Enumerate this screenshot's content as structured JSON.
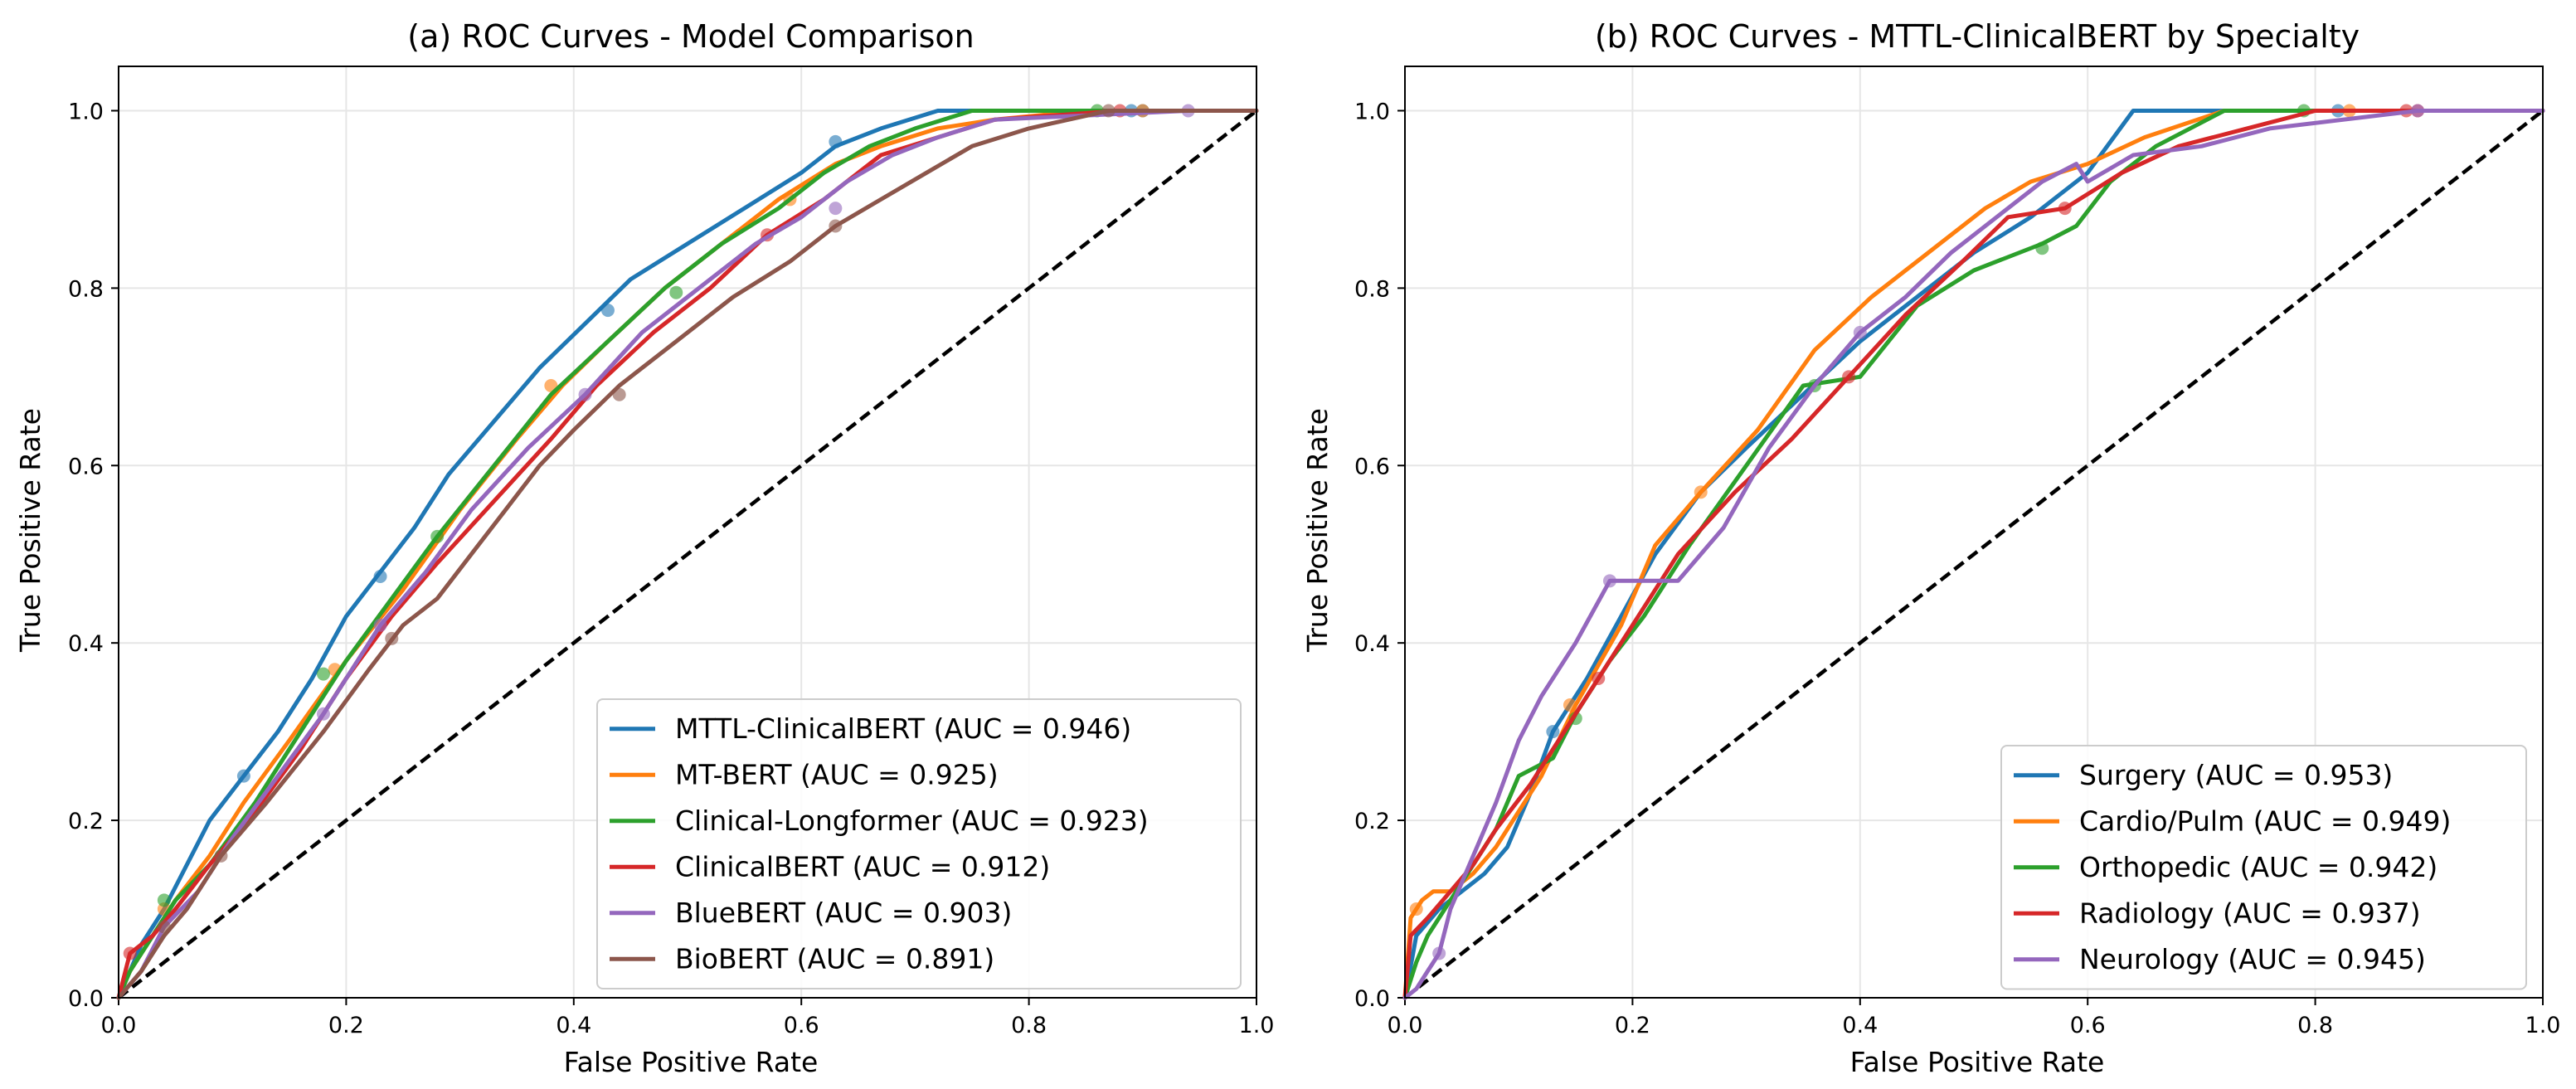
{
  "colors": {
    "blue": "#1f77b4",
    "orange": "#ff7f0e",
    "green": "#2ca02c",
    "red": "#d62728",
    "purple": "#9467bd",
    "brown": "#8c564b",
    "grid": "#e6e6e6",
    "diagonal": "#000000"
  },
  "chart_data": [
    {
      "type": "line",
      "title": "(a) ROC Curves - Model Comparison",
      "xlabel": "False Positive Rate",
      "ylabel": "True Positive Rate",
      "xlim": [
        0.0,
        1.0
      ],
      "ylim": [
        0.0,
        1.05
      ],
      "xticks": [
        "0.0",
        "0.2",
        "0.4",
        "0.6",
        "0.8",
        "1.0"
      ],
      "yticks": [
        "0.0",
        "0.2",
        "0.4",
        "0.6",
        "0.8",
        "1.0"
      ],
      "grid": true,
      "legend_position": "lower-right",
      "diagonal": true,
      "series": [
        {
          "name": "MTTL-ClinicalBERT (AUC = 0.946)",
          "color": "#1f77b4",
          "x": [
            0,
            0.01,
            0.02,
            0.04,
            0.06,
            0.08,
            0.11,
            0.14,
            0.17,
            0.2,
            0.23,
            0.26,
            0.29,
            0.33,
            0.37,
            0.41,
            0.45,
            0.5,
            0.55,
            0.6,
            0.63,
            0.67,
            0.72,
            0.75,
            0.8,
            0.9,
            1.0
          ],
          "y": [
            0,
            0.03,
            0.06,
            0.1,
            0.15,
            0.2,
            0.25,
            0.3,
            0.36,
            0.43,
            0.48,
            0.53,
            0.59,
            0.65,
            0.71,
            0.76,
            0.81,
            0.85,
            0.89,
            0.93,
            0.96,
            0.98,
            1.0,
            1.0,
            1.0,
            1.0,
            1.0
          ],
          "markers": [
            [
              0.11,
              0.25
            ],
            [
              0.23,
              0.475
            ],
            [
              0.43,
              0.775
            ],
            [
              0.63,
              0.965
            ],
            [
              0.89,
              1.0
            ],
            [
              0.9,
              1.0
            ]
          ]
        },
        {
          "name": "MT-BERT (AUC = 0.925)",
          "color": "#ff7f0e",
          "x": [
            0,
            0.01,
            0.03,
            0.05,
            0.08,
            0.11,
            0.15,
            0.2,
            0.25,
            0.3,
            0.35,
            0.39,
            0.43,
            0.48,
            0.53,
            0.58,
            0.63,
            0.67,
            0.72,
            0.77,
            0.85,
            0.9,
            1.0
          ],
          "y": [
            0,
            0.03,
            0.07,
            0.11,
            0.16,
            0.22,
            0.29,
            0.38,
            0.46,
            0.55,
            0.63,
            0.69,
            0.74,
            0.8,
            0.85,
            0.9,
            0.94,
            0.96,
            0.98,
            0.99,
            1.0,
            1.0,
            1.0
          ],
          "markers": [
            [
              0.04,
              0.1
            ],
            [
              0.19,
              0.37
            ],
            [
              0.38,
              0.69
            ],
            [
              0.59,
              0.9
            ],
            [
              0.9,
              1.0
            ]
          ]
        },
        {
          "name": "Clinical-Longformer (AUC = 0.923)",
          "color": "#2ca02c",
          "x": [
            0,
            0.01,
            0.03,
            0.05,
            0.08,
            0.12,
            0.16,
            0.2,
            0.24,
            0.28,
            0.33,
            0.38,
            0.43,
            0.48,
            0.53,
            0.58,
            0.62,
            0.66,
            0.7,
            0.75,
            0.86,
            1.0
          ],
          "y": [
            0,
            0.03,
            0.07,
            0.11,
            0.15,
            0.22,
            0.3,
            0.38,
            0.45,
            0.52,
            0.6,
            0.68,
            0.74,
            0.8,
            0.85,
            0.89,
            0.93,
            0.96,
            0.98,
            1.0,
            1.0,
            1.0
          ],
          "markers": [
            [
              0.04,
              0.11
            ],
            [
              0.18,
              0.365
            ],
            [
              0.28,
              0.52
            ],
            [
              0.49,
              0.795
            ],
            [
              0.86,
              1.0
            ]
          ]
        },
        {
          "name": "ClinicalBERT (AUC = 0.912)",
          "color": "#d62728",
          "x": [
            0,
            0.01,
            0.03,
            0.05,
            0.08,
            0.12,
            0.16,
            0.2,
            0.24,
            0.28,
            0.33,
            0.38,
            0.42,
            0.47,
            0.52,
            0.57,
            0.62,
            0.67,
            0.72,
            0.77,
            0.88,
            1.0
          ],
          "y": [
            0,
            0.05,
            0.07,
            0.1,
            0.15,
            0.21,
            0.28,
            0.36,
            0.43,
            0.49,
            0.56,
            0.63,
            0.69,
            0.75,
            0.8,
            0.86,
            0.9,
            0.95,
            0.97,
            0.99,
            1.0,
            1.0
          ],
          "markers": [
            [
              0.01,
              0.05
            ],
            [
              0.57,
              0.86
            ],
            [
              0.88,
              1.0
            ]
          ]
        },
        {
          "name": "BlueBERT (AUC = 0.903)",
          "color": "#9467bd",
          "x": [
            0,
            0.02,
            0.04,
            0.07,
            0.1,
            0.14,
            0.18,
            0.23,
            0.27,
            0.31,
            0.36,
            0.41,
            0.46,
            0.51,
            0.56,
            0.6,
            0.64,
            0.68,
            0.72,
            0.77,
            0.94,
            1.0
          ],
          "y": [
            0,
            0.03,
            0.08,
            0.12,
            0.18,
            0.25,
            0.32,
            0.42,
            0.48,
            0.55,
            0.62,
            0.68,
            0.75,
            0.8,
            0.85,
            0.88,
            0.92,
            0.95,
            0.97,
            0.99,
            1.0,
            1.0
          ],
          "markers": [
            [
              0.18,
              0.32
            ],
            [
              0.23,
              0.42
            ],
            [
              0.41,
              0.68
            ],
            [
              0.63,
              0.89
            ],
            [
              0.94,
              1.0
            ]
          ]
        },
        {
          "name": "BioBERT (AUC = 0.891)",
          "color": "#8c564b",
          "x": [
            0,
            0.02,
            0.04,
            0.06,
            0.09,
            0.13,
            0.18,
            0.22,
            0.25,
            0.28,
            0.31,
            0.34,
            0.37,
            0.4,
            0.44,
            0.49,
            0.54,
            0.59,
            0.63,
            0.67,
            0.71,
            0.75,
            0.8,
            0.87,
            1.0
          ],
          "y": [
            0,
            0.03,
            0.07,
            0.1,
            0.16,
            0.22,
            0.3,
            0.37,
            0.42,
            0.45,
            0.5,
            0.55,
            0.6,
            0.64,
            0.69,
            0.74,
            0.79,
            0.83,
            0.87,
            0.9,
            0.93,
            0.96,
            0.98,
            1.0,
            1.0
          ],
          "markers": [
            [
              0.04,
              0.08
            ],
            [
              0.09,
              0.16
            ],
            [
              0.24,
              0.405
            ],
            [
              0.44,
              0.68
            ],
            [
              0.63,
              0.87
            ],
            [
              0.87,
              1.0
            ]
          ]
        }
      ]
    },
    {
      "type": "line",
      "title": "(b) ROC Curves - MTTL-ClinicalBERT by Specialty",
      "xlabel": "False Positive Rate",
      "ylabel": "True Positive Rate",
      "xlim": [
        0.0,
        1.0
      ],
      "ylim": [
        0.0,
        1.05
      ],
      "xticks": [
        "0.0",
        "0.2",
        "0.4",
        "0.6",
        "0.8",
        "1.0"
      ],
      "yticks": [
        "0.0",
        "0.2",
        "0.4",
        "0.6",
        "0.8",
        "1.0"
      ],
      "grid": true,
      "legend_position": "lower-right",
      "diagonal": true,
      "series": [
        {
          "name": "Surgery (AUC = 0.953)",
          "color": "#1f77b4",
          "x": [
            0,
            0.01,
            0.03,
            0.05,
            0.07,
            0.09,
            0.11,
            0.13,
            0.16,
            0.19,
            0.22,
            0.26,
            0.3,
            0.35,
            0.4,
            0.45,
            0.5,
            0.55,
            0.6,
            0.64,
            0.72,
            0.82,
            1.0
          ],
          "y": [
            0,
            0.07,
            0.1,
            0.12,
            0.14,
            0.17,
            0.23,
            0.3,
            0.36,
            0.43,
            0.5,
            0.57,
            0.62,
            0.68,
            0.74,
            0.79,
            0.84,
            0.88,
            0.93,
            1.0,
            1.0,
            1.0,
            1.0
          ],
          "markers": [
            [
              0.13,
              0.3
            ],
            [
              0.82,
              1.0
            ]
          ]
        },
        {
          "name": "Cardio/Pulm (AUC = 0.949)",
          "color": "#ff7f0e",
          "x": [
            0,
            0.005,
            0.015,
            0.025,
            0.04,
            0.06,
            0.08,
            0.1,
            0.12,
            0.15,
            0.19,
            0.22,
            0.26,
            0.31,
            0.36,
            0.41,
            0.46,
            0.51,
            0.55,
            0.6,
            0.65,
            0.72,
            0.8,
            0.83,
            1.0
          ],
          "y": [
            0,
            0.09,
            0.11,
            0.12,
            0.12,
            0.14,
            0.17,
            0.21,
            0.25,
            0.33,
            0.42,
            0.51,
            0.57,
            0.64,
            0.73,
            0.79,
            0.84,
            0.89,
            0.92,
            0.94,
            0.97,
            1.0,
            1.0,
            1.0,
            1.0
          ],
          "markers": [
            [
              0.01,
              0.1
            ],
            [
              0.145,
              0.33
            ],
            [
              0.26,
              0.57
            ],
            [
              0.83,
              1.0
            ]
          ]
        },
        {
          "name": "Orthopedic (AUC = 0.942)",
          "color": "#2ca02c",
          "x": [
            0,
            0.01,
            0.02,
            0.04,
            0.06,
            0.08,
            0.1,
            0.13,
            0.15,
            0.18,
            0.21,
            0.25,
            0.3,
            0.35,
            0.4,
            0.45,
            0.5,
            0.56,
            0.59,
            0.62,
            0.66,
            0.72,
            0.79,
            1.0
          ],
          "y": [
            0,
            0.04,
            0.07,
            0.11,
            0.15,
            0.19,
            0.25,
            0.27,
            0.32,
            0.38,
            0.43,
            0.51,
            0.6,
            0.69,
            0.7,
            0.78,
            0.82,
            0.85,
            0.87,
            0.92,
            0.96,
            1.0,
            1.0,
            1.0
          ],
          "markers": [
            [
              0.15,
              0.315
            ],
            [
              0.36,
              0.69
            ],
            [
              0.56,
              0.845
            ],
            [
              0.79,
              1.0
            ]
          ]
        },
        {
          "name": "Radiology (AUC = 0.937)",
          "color": "#d62728",
          "x": [
            0,
            0.005,
            0.02,
            0.04,
            0.06,
            0.08,
            0.11,
            0.14,
            0.17,
            0.2,
            0.24,
            0.29,
            0.34,
            0.39,
            0.44,
            0.49,
            0.53,
            0.58,
            0.63,
            0.68,
            0.74,
            0.8,
            0.88,
            0.89,
            1.0
          ],
          "y": [
            0,
            0.07,
            0.09,
            0.12,
            0.15,
            0.19,
            0.24,
            0.3,
            0.36,
            0.42,
            0.5,
            0.57,
            0.63,
            0.7,
            0.77,
            0.83,
            0.88,
            0.89,
            0.93,
            0.96,
            0.98,
            1.0,
            1.0,
            1.0,
            1.0
          ],
          "markers": [
            [
              0.17,
              0.36
            ],
            [
              0.39,
              0.7
            ],
            [
              0.58,
              0.89
            ],
            [
              0.88,
              1.0
            ],
            [
              0.89,
              1.0
            ]
          ]
        },
        {
          "name": "Neurology (AUC = 0.945)",
          "color": "#9467bd",
          "x": [
            0,
            0.01,
            0.02,
            0.03,
            0.04,
            0.06,
            0.08,
            0.1,
            0.12,
            0.15,
            0.18,
            0.21,
            0.24,
            0.28,
            0.32,
            0.36,
            0.4,
            0.44,
            0.48,
            0.52,
            0.56,
            0.59,
            0.6,
            0.64,
            0.7,
            0.76,
            0.89,
            1.0
          ],
          "y": [
            0,
            0.01,
            0.03,
            0.05,
            0.1,
            0.16,
            0.22,
            0.29,
            0.34,
            0.4,
            0.47,
            0.47,
            0.47,
            0.53,
            0.62,
            0.69,
            0.75,
            0.79,
            0.84,
            0.88,
            0.92,
            0.94,
            0.92,
            0.95,
            0.96,
            0.98,
            1.0,
            1.0
          ],
          "markers": [
            [
              0.03,
              0.05
            ],
            [
              0.18,
              0.47
            ],
            [
              0.4,
              0.75
            ],
            [
              0.89,
              1.0
            ]
          ]
        }
      ]
    }
  ]
}
